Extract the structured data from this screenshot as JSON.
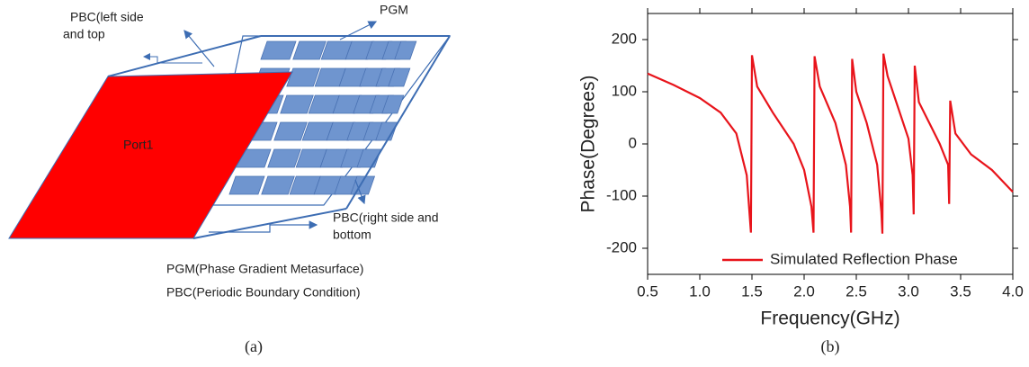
{
  "diagram": {
    "pbc_left": [
      "PBC(left side",
      "and top"
    ],
    "pgm": "PGM",
    "port": "Port1",
    "pbc_right": [
      "PBC(right side and",
      "bottom"
    ],
    "notes": [
      "PGM(Phase Gradient Metasurface)",
      "PBC(Periodic Boundary Condition)"
    ],
    "caption": "(a)"
  },
  "chart_data": {
    "type": "line",
    "caption": "(b)",
    "x_label": "Frequency(GHz)",
    "y_label": "Phase(Degrees)",
    "x": [
      0.5,
      0.75,
      1.0,
      1.2,
      1.35,
      1.45,
      1.49,
      1.5,
      1.55,
      1.7,
      1.9,
      2.0,
      2.07,
      2.09,
      2.1,
      2.15,
      2.3,
      2.4,
      2.44,
      2.45,
      2.46,
      2.5,
      2.6,
      2.7,
      2.74,
      2.75,
      2.76,
      2.8,
      2.9,
      3.0,
      3.04,
      3.05,
      3.06,
      3.1,
      3.2,
      3.3,
      3.38,
      3.39,
      3.4,
      3.45,
      3.6,
      3.8,
      4.0
    ],
    "series": [
      {
        "name": "Simulated Reflection Phase",
        "color": "#e8141b",
        "values": [
          135,
          113,
          88,
          60,
          20,
          -60,
          -170,
          170,
          110,
          60,
          0,
          -50,
          -120,
          -170,
          168,
          110,
          40,
          -40,
          -120,
          -170,
          163,
          100,
          40,
          -40,
          -130,
          -172,
          173,
          130,
          70,
          10,
          -60,
          -135,
          150,
          80,
          40,
          0,
          -40,
          -115,
          83,
          20,
          -20,
          -50,
          -92
        ]
      }
    ],
    "xlim": [
      0.5,
      4.0
    ],
    "ylim": [
      -250,
      250
    ],
    "xticks": [
      0.5,
      {
        "value": 1,
        "label": "1.0"
      },
      1.5,
      {
        "value": 2,
        "label": "2.0"
      },
      2.5,
      {
        "value": 3,
        "label": "3.0"
      },
      3.5,
      {
        "value": 4,
        "label": "4.0"
      }
    ],
    "yticks": [
      -200,
      -100,
      0,
      100,
      200
    ],
    "legend": "lower right"
  }
}
